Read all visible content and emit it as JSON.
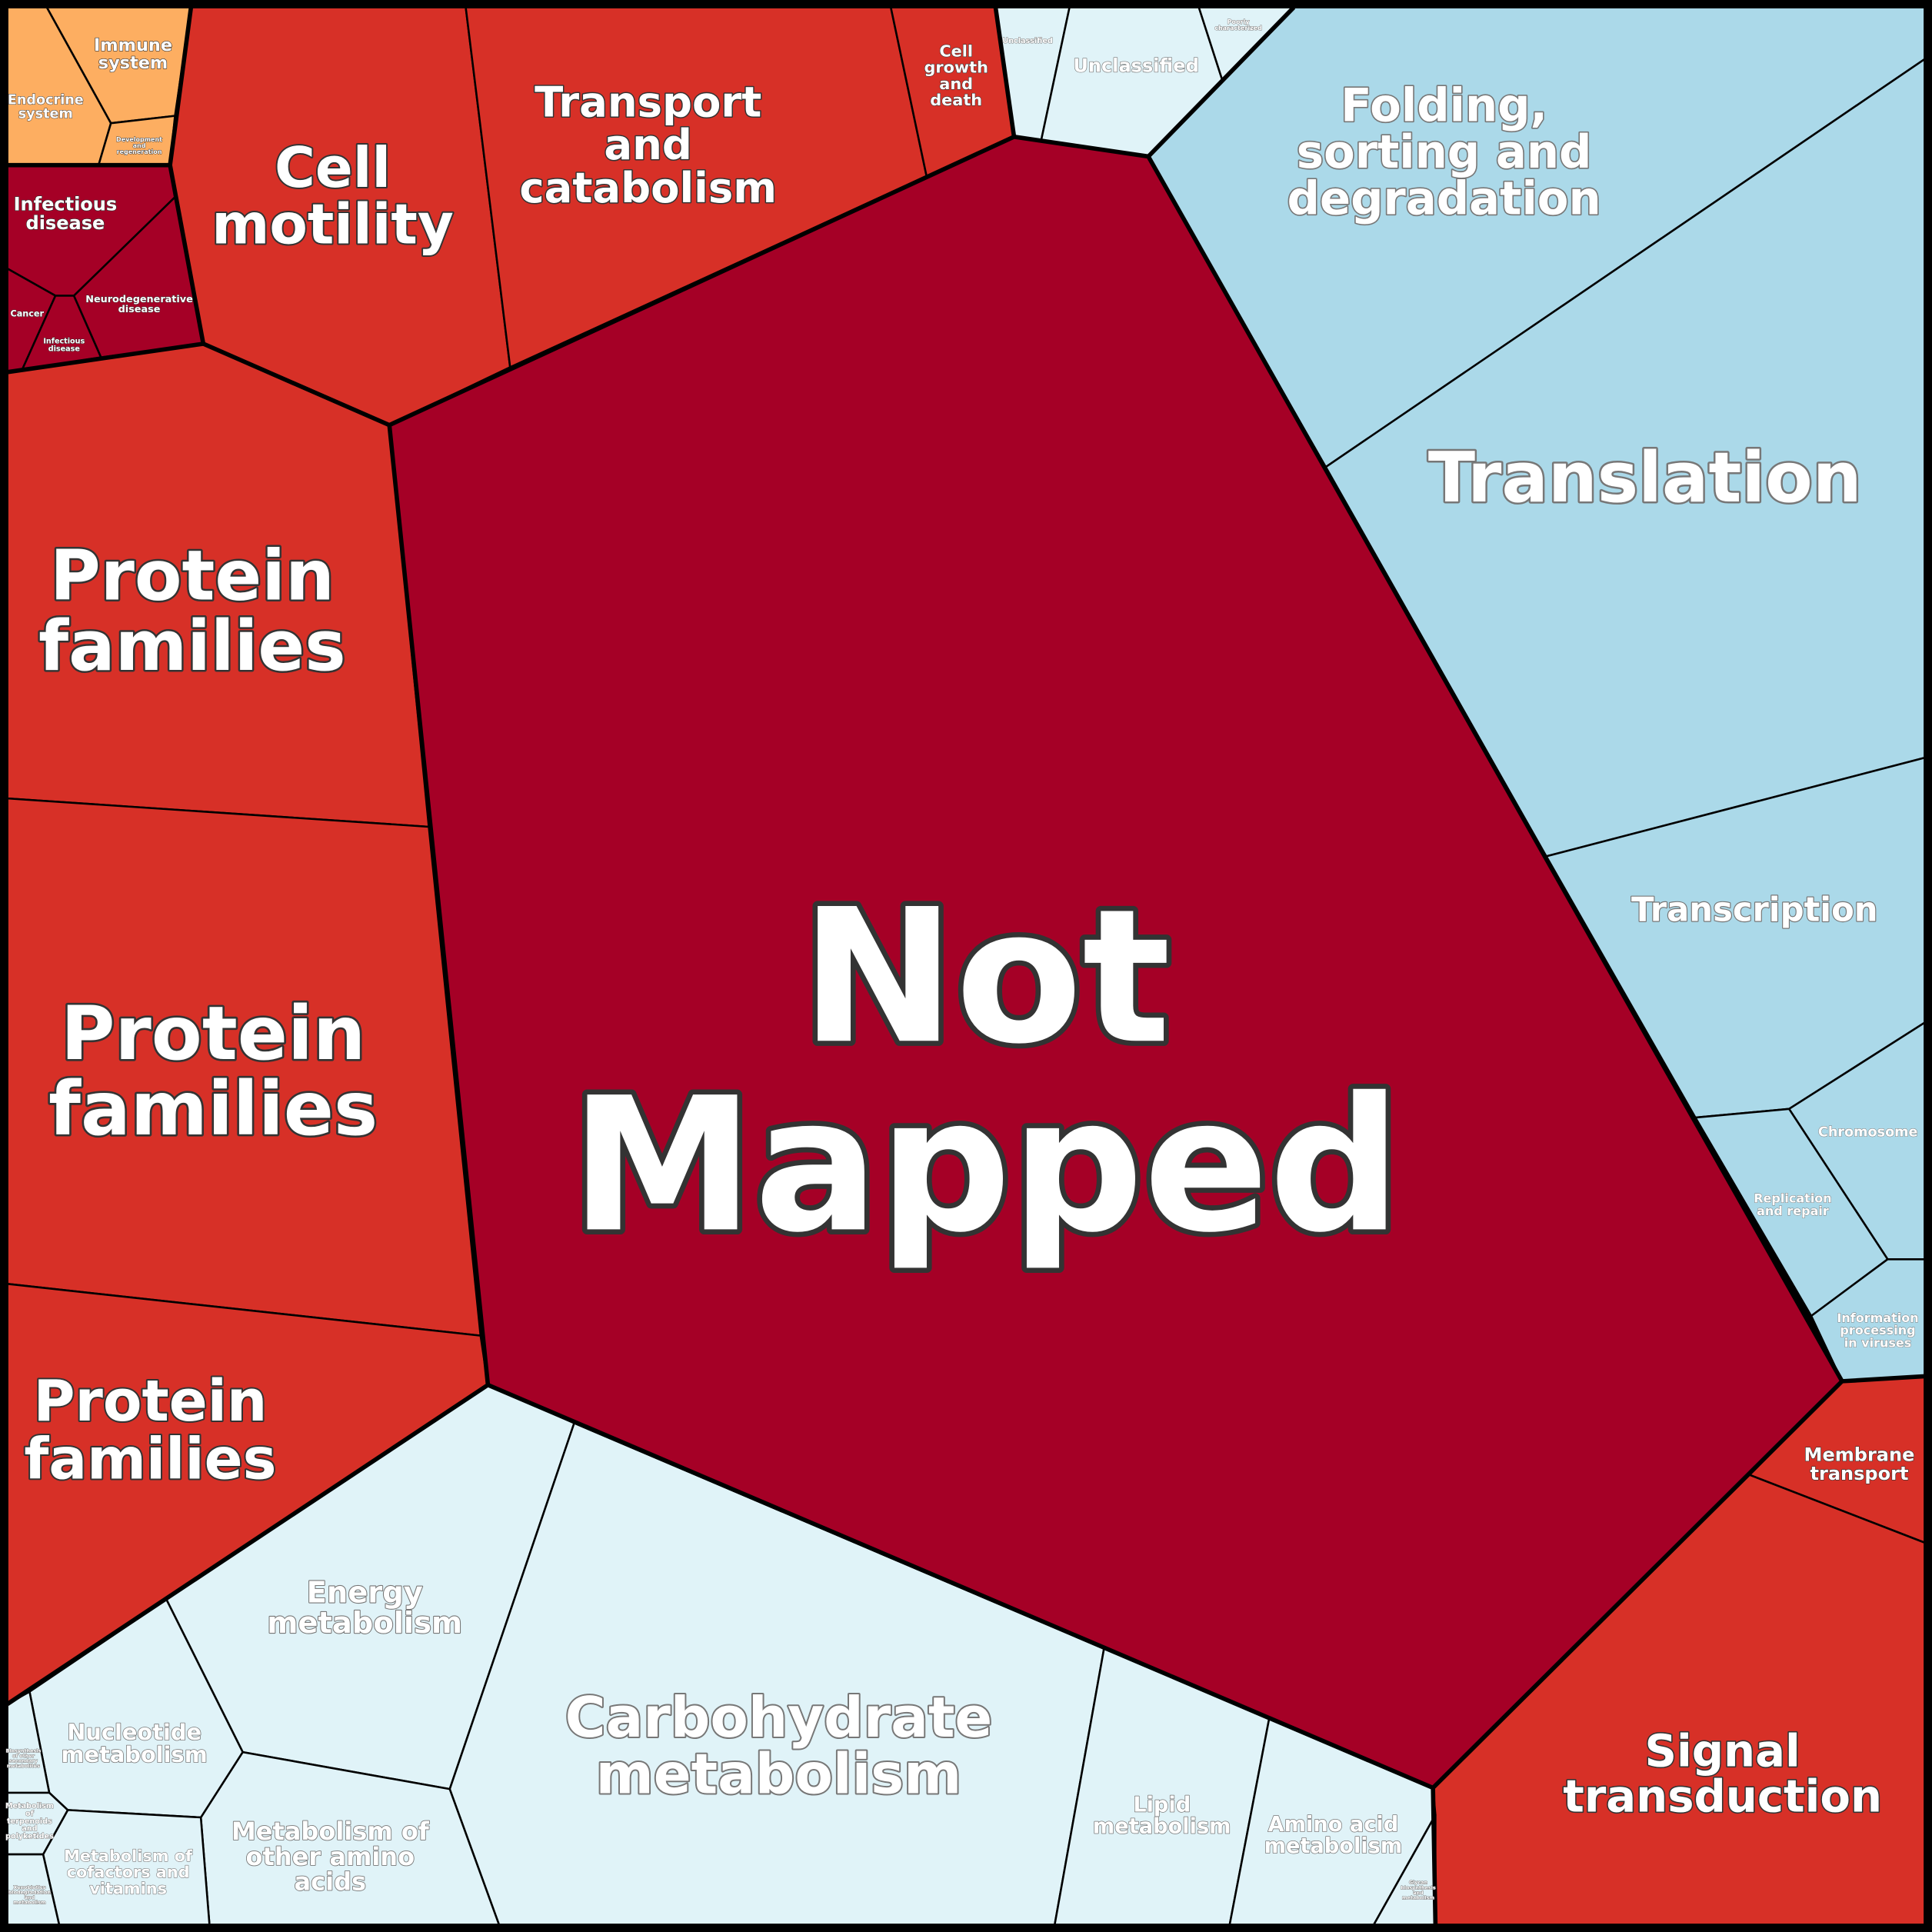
{
  "cells": [
    {
      "label": [
        "Not",
        "Mapped"
      ]
    },
    {
      "label": [
        "Immune",
        "system"
      ]
    },
    {
      "label": [
        "Endocrine",
        "system"
      ]
    },
    {
      "label": [
        "Development",
        "and",
        "regeneration"
      ]
    },
    {
      "label": [
        "Infectious",
        "disease"
      ]
    },
    {
      "label": [
        "Cancer"
      ]
    },
    {
      "label": [
        "Infectious",
        "disease"
      ]
    },
    {
      "label": [
        "Neurodegenerative",
        "disease"
      ]
    },
    {
      "label": [
        "Cell",
        "motility"
      ]
    },
    {
      "label": [
        "Transport",
        "and",
        "catabolism"
      ]
    },
    {
      "label": [
        "Cell",
        "growth",
        "and",
        "death"
      ]
    },
    {
      "label": [
        "Unclassified"
      ]
    },
    {
      "label": [
        "Unclassified"
      ]
    },
    {
      "label": [
        "Poorly",
        "characterized"
      ]
    },
    {
      "label": [
        "Folding,",
        "sorting and",
        "degradation"
      ]
    },
    {
      "label": [
        "Translation"
      ]
    },
    {
      "label": [
        "Transcription"
      ]
    },
    {
      "label": [
        "Chromosome"
      ]
    },
    {
      "label": [
        "Replication",
        "and repair"
      ]
    },
    {
      "label": [
        "Information",
        "processing",
        "in viruses"
      ]
    },
    {
      "label": [
        "Membrane",
        "transport"
      ]
    },
    {
      "label": [
        "Signal",
        "transduction"
      ]
    },
    {
      "label": [
        "Protein",
        "families"
      ]
    },
    {
      "label": [
        "Protein",
        "families"
      ]
    },
    {
      "label": [
        "Protein",
        "families"
      ]
    },
    {
      "label": [
        "Energy",
        "metabolism"
      ]
    },
    {
      "label": [
        "Carbohydrate",
        "metabolism"
      ]
    },
    {
      "label": [
        "Lipid",
        "metabolism"
      ]
    },
    {
      "label": [
        "Amino acid",
        "metabolism"
      ]
    },
    {
      "label": [
        "Glycan",
        "biosynthesis",
        "and",
        "metabolism"
      ]
    },
    {
      "label": [
        "Metabolism of",
        "other amino",
        "acids"
      ]
    },
    {
      "label": [
        "Nucleotide",
        "metabolism"
      ]
    },
    {
      "label": [
        "Metabolism of",
        "cofactors and",
        "vitamins"
      ]
    },
    {
      "label": [
        "Biosynthesis",
        "of other",
        "secondary",
        "metabolites"
      ]
    },
    {
      "label": [
        "Metabolism",
        "of",
        "terpenoids",
        "and",
        "polyketides"
      ]
    },
    {
      "label": [
        "Xenobiotics",
        "biodegradation",
        "and",
        "metabolism"
      ]
    }
  ]
}
